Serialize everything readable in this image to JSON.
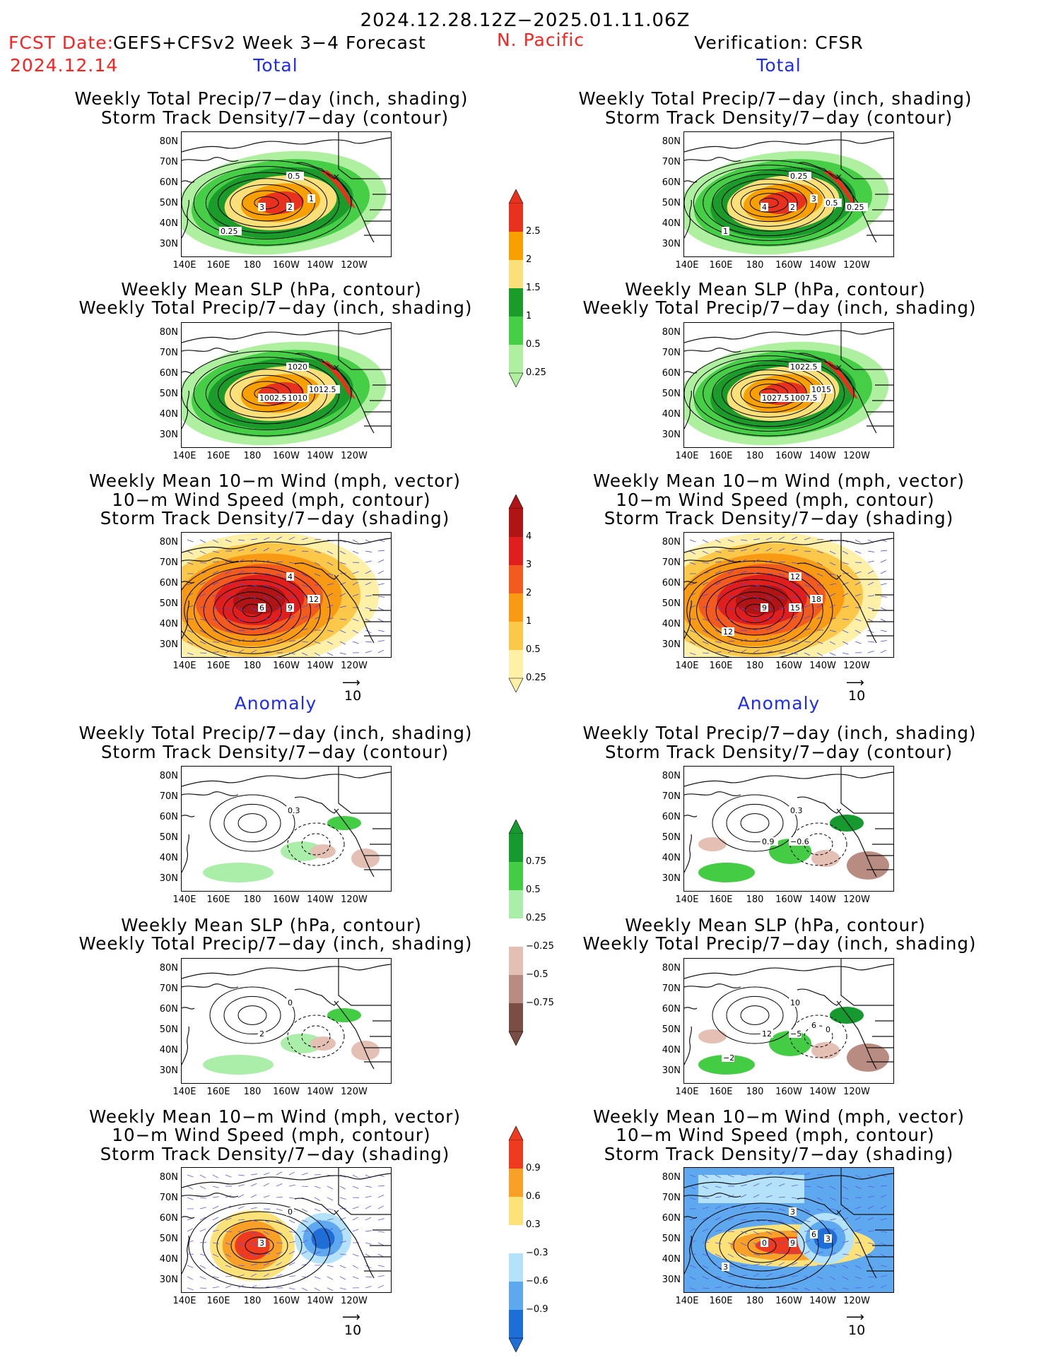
{
  "header": {
    "period": "2024.12.28.12Z−2025.01.11.06Z",
    "fcst_date_label": "FCST Date:",
    "fcst_model": "GEFS+CFSv2 Week 3−4 Forecast",
    "fcst_date": "2024.12.14",
    "region": "N. Pacific",
    "verification": "Verification: CFSR"
  },
  "sections": {
    "total": "Total",
    "anomaly": "Anomaly"
  },
  "titles": {
    "precip_track": [
      "Weekly Total Precip/7−day (inch, shading)",
      "Storm Track Density/7−day (contour)"
    ],
    "slp_precip": [
      "Weekly Mean SLP (hPa, contour)",
      "Weekly Total Precip/7−day (inch, shading)"
    ],
    "wind_track": [
      "Weekly Mean 10−m Wind (mph, vector)",
      "10−m Wind Speed (mph, contour)",
      "Storm Track Density/7−day (shading)"
    ]
  },
  "axes": {
    "lat_labels": [
      "80N",
      "70N",
      "60N",
      "50N",
      "40N",
      "30N"
    ],
    "lon_labels": [
      "140E",
      "160E",
      "180",
      "160W",
      "140W",
      "120W"
    ]
  },
  "vector_reference": "10",
  "colorbars": {
    "total_precip": {
      "labels": [
        "2.5",
        "2",
        "1.5",
        "1",
        "0.5",
        "0.25"
      ],
      "colors": [
        "#e8321e",
        "#f7a000",
        "#fbe07a",
        "#1a9b2a",
        "#46cf46",
        "#aef0a0"
      ]
    },
    "total_track": {
      "labels": [
        "4",
        "3",
        "2",
        "1",
        "0.5",
        "0.25"
      ],
      "colors": [
        "#b01414",
        "#e01e1e",
        "#f35a1e",
        "#f99a14",
        "#fcc84a",
        "#fff0a8"
      ]
    },
    "anom_precip": {
      "labels": [
        "0.75",
        "0.5",
        "0.25",
        "−0.25",
        "−0.5",
        "−0.75"
      ],
      "colors": [
        "#169a30",
        "#44cc44",
        "#aaeeaa",
        "#ffffff",
        "#e4c0b4",
        "#b88c80",
        "#7a4e44"
      ]
    },
    "anom_track": {
      "labels": [
        "0.9",
        "0.6",
        "0.3",
        "−0.3",
        "−0.6",
        "−0.9"
      ],
      "colors": [
        "#ee3a1e",
        "#f8a028",
        "#fde27a",
        "#ffffff",
        "#b4e2fa",
        "#5ea8f0",
        "#1e6ed8"
      ]
    },
    "contour_labels": {
      "p1_left": [
        "0.5",
        "3",
        "2",
        "1",
        "0.25"
      ],
      "p1_right": [
        "0.25",
        "4",
        "2",
        "3",
        "1",
        "0.5",
        "0.25"
      ],
      "p2_left": [
        "1020",
        "1002.5",
        "1010",
        "1012.5"
      ],
      "p2_right": [
        "1022.5",
        "1027.5",
        "1007.5",
        "1015"
      ],
      "p3_left": [
        "4",
        "6",
        "9",
        "12"
      ],
      "p3_right": [
        "12",
        "9",
        "15",
        "18",
        "12"
      ],
      "p4_left": [
        "0.3"
      ],
      "p4_right": [
        "0.3",
        "0.9",
        "−0.6"
      ],
      "p5_left": [
        "0",
        "2"
      ],
      "p5_right": [
        "10",
        "12",
        "−5",
        "6",
        "−2",
        "0"
      ],
      "p6_left": [
        "0",
        "3"
      ],
      "p6_right": [
        "3",
        "0",
        "9",
        "6",
        "3",
        "3"
      ]
    }
  }
}
